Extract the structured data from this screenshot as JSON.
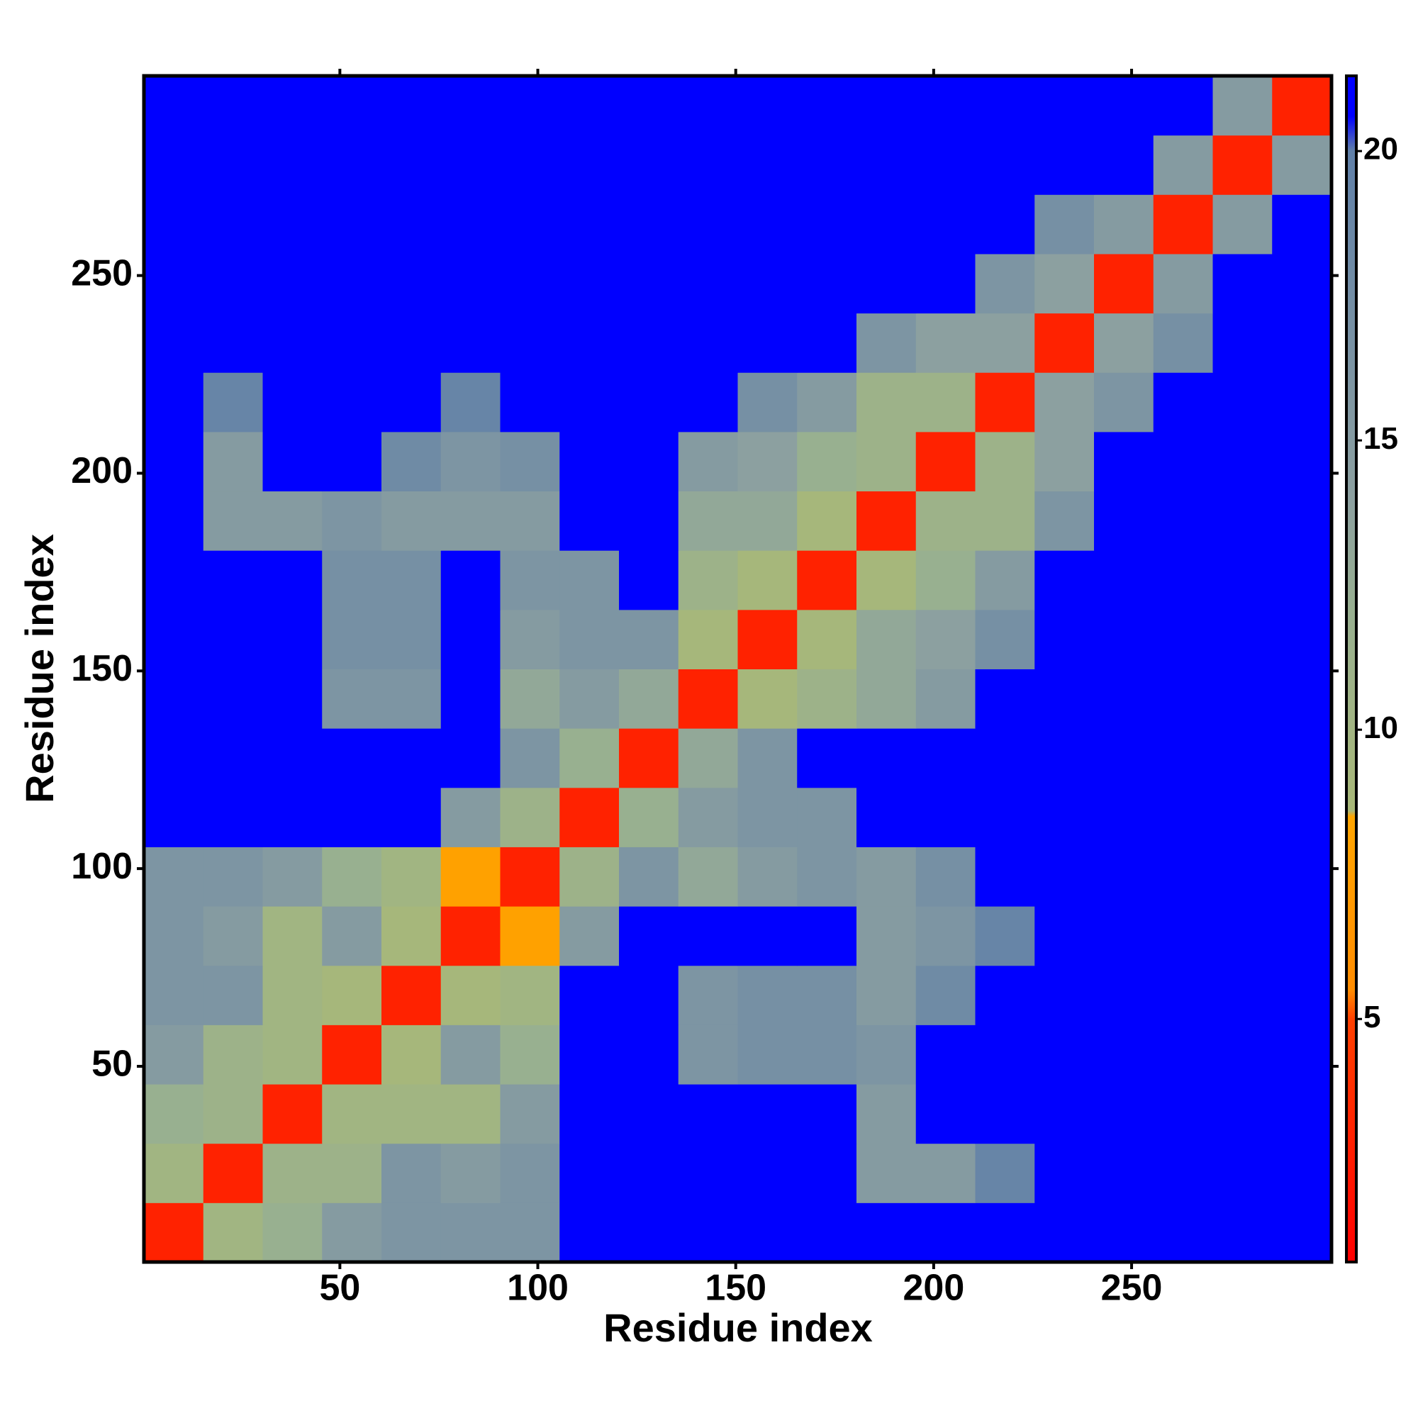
{
  "chart_data": {
    "type": "heatmap",
    "xlabel": "Residue index",
    "ylabel": "Residue index",
    "x_bins": [
      0.5,
      15.5,
      30.5,
      45.5,
      60.5,
      75.5,
      90.5,
      105.5,
      120.5,
      135.5,
      150.5,
      165.5,
      180.5,
      195.5,
      210.5,
      225.5,
      240.5,
      255.5,
      270.5,
      285.5,
      300.5
    ],
    "y_bins": [
      0.5,
      15.5,
      30.5,
      45.5,
      60.5,
      75.5,
      90.5,
      105.5,
      120.5,
      135.5,
      150.5,
      165.5,
      180.5,
      195.5,
      210.5,
      225.5,
      240.5,
      255.5,
      270.5,
      285.5,
      300.5
    ],
    "values": [
      [
        3,
        10,
        12,
        15,
        16,
        16,
        16,
        21,
        21,
        21,
        21,
        21,
        21,
        21,
        21,
        21,
        21,
        21,
        21,
        21
      ],
      [
        10,
        3,
        11,
        11,
        16,
        15,
        16,
        21,
        21,
        21,
        21,
        21,
        15,
        15,
        19,
        21,
        21,
        21,
        21,
        21
      ],
      [
        12,
        11,
        3,
        10,
        10,
        10,
        15,
        21,
        21,
        21,
        21,
        21,
        15,
        21,
        21,
        21,
        21,
        21,
        21,
        21
      ],
      [
        15,
        11,
        10,
        3,
        9,
        15,
        12,
        21,
        21,
        16,
        17,
        17,
        16,
        21,
        21,
        21,
        21,
        21,
        21,
        21
      ],
      [
        16,
        16,
        10,
        9,
        3,
        9,
        10,
        21,
        21,
        16,
        17,
        17,
        15,
        18,
        21,
        21,
        21,
        21,
        21,
        21
      ],
      [
        16,
        15,
        10,
        15,
        9,
        3,
        8,
        15,
        21,
        21,
        21,
        21,
        15,
        16,
        19,
        21,
        21,
        21,
        21,
        21
      ],
      [
        16,
        16,
        15,
        12,
        10,
        8,
        3,
        11,
        16,
        13,
        15,
        16,
        15,
        17,
        21,
        21,
        21,
        21,
        21,
        21
      ],
      [
        21,
        21,
        21,
        21,
        21,
        15,
        11,
        3,
        12,
        15,
        16,
        16,
        21,
        21,
        21,
        21,
        21,
        21,
        21,
        21
      ],
      [
        21,
        21,
        21,
        21,
        21,
        21,
        16,
        12,
        3,
        13,
        16,
        21,
        21,
        21,
        21,
        21,
        21,
        21,
        21,
        21
      ],
      [
        21,
        21,
        21,
        16,
        16,
        21,
        13,
        15,
        13,
        3,
        9,
        11,
        13,
        15,
        21,
        21,
        21,
        21,
        21,
        21
      ],
      [
        21,
        21,
        21,
        17,
        17,
        21,
        15,
        16,
        16,
        9,
        3,
        9,
        13,
        14,
        17,
        21,
        21,
        21,
        21,
        21
      ],
      [
        21,
        21,
        21,
        17,
        17,
        21,
        16,
        16,
        21,
        11,
        9,
        3,
        9,
        12,
        15,
        21,
        21,
        21,
        21,
        21
      ],
      [
        21,
        15,
        15,
        16,
        15,
        15,
        15,
        21,
        21,
        13,
        13,
        9,
        3,
        11,
        11,
        16,
        21,
        21,
        21,
        21
      ],
      [
        21,
        15,
        21,
        21,
        18,
        16,
        17,
        21,
        21,
        15,
        14,
        12,
        11,
        3,
        11,
        14,
        21,
        21,
        21,
        21
      ],
      [
        21,
        19,
        21,
        21,
        21,
        19,
        21,
        21,
        21,
        21,
        17,
        15,
        11,
        11,
        3,
        14,
        16,
        21,
        21,
        21
      ],
      [
        21,
        21,
        21,
        21,
        21,
        21,
        21,
        21,
        21,
        21,
        21,
        21,
        16,
        14,
        14,
        3,
        14,
        17,
        21,
        21
      ],
      [
        21,
        21,
        21,
        21,
        21,
        21,
        21,
        21,
        21,
        21,
        21,
        21,
        21,
        21,
        16,
        14,
        3,
        15,
        21,
        21
      ],
      [
        21,
        21,
        21,
        21,
        21,
        21,
        21,
        21,
        21,
        21,
        21,
        21,
        21,
        21,
        21,
        17,
        15,
        3,
        15,
        21
      ],
      [
        21,
        21,
        21,
        21,
        21,
        21,
        21,
        21,
        21,
        21,
        21,
        21,
        21,
        21,
        21,
        21,
        21,
        15,
        3,
        15
      ],
      [
        21,
        21,
        21,
        21,
        21,
        21,
        21,
        21,
        21,
        21,
        21,
        21,
        21,
        21,
        21,
        21,
        21,
        21,
        15,
        3
      ]
    ],
    "xlim": [
      0.5,
      300.5
    ],
    "ylim": [
      0.5,
      300.5
    ],
    "xticks": [
      50,
      100,
      150,
      200,
      250
    ],
    "yticks": [
      50,
      100,
      150,
      200,
      250
    ],
    "colorscale": [
      [
        0.8,
        "#ff0000"
      ],
      [
        5,
        "#ff4000"
      ],
      [
        5.5,
        "#ff8c00"
      ],
      [
        8.5,
        "#ffa500"
      ],
      [
        8.6,
        "#a8b878"
      ],
      [
        12,
        "#98b090"
      ],
      [
        14,
        "#8ca0a0"
      ],
      [
        20,
        "#6080a8"
      ],
      [
        20.6,
        "#0000ff"
      ]
    ],
    "colorbar": {
      "lim": [
        0.8,
        21.3
      ],
      "ticks": [
        5,
        10,
        15,
        20
      ]
    }
  }
}
